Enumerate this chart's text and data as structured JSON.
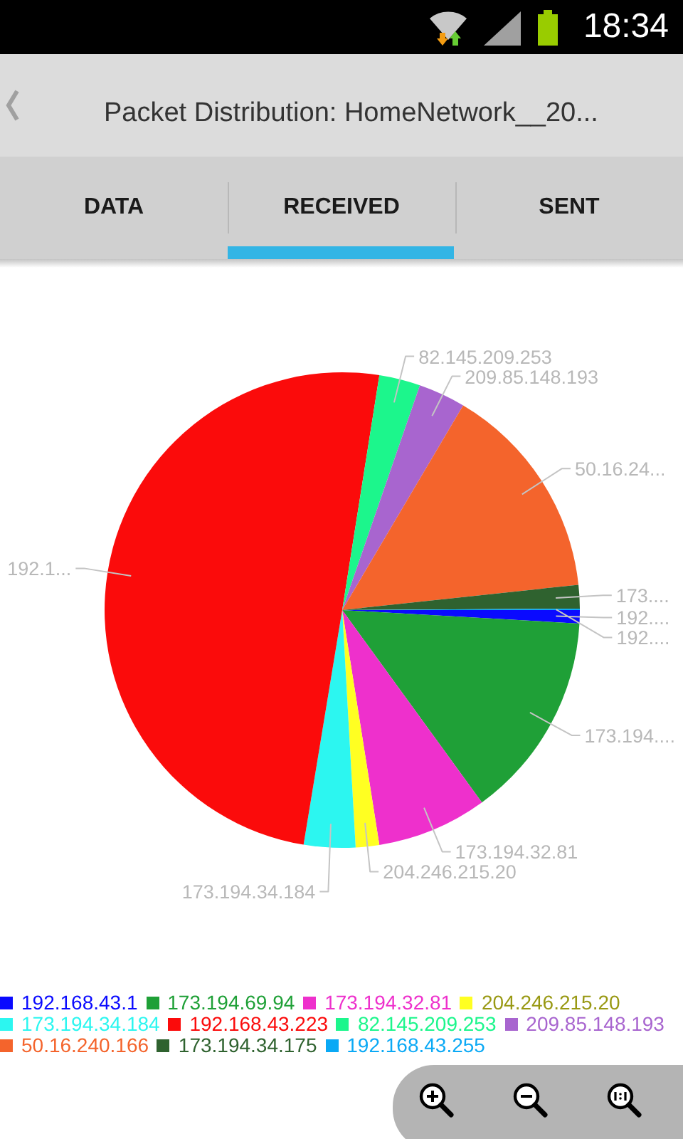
{
  "chart_data": {
    "type": "pie",
    "title": "Packet Distribution: HomeNetwork__20...",
    "categories": [
      "192.168.43.1",
      "173.194.69.94",
      "173.194.32.81",
      "204.246.215.20",
      "173.194.34.184",
      "192.168.43.223",
      "82.145.209.253",
      "209.85.148.193",
      "50.16.240.166",
      "173.194.34.175",
      "192.168.43.255"
    ],
    "values": [
      0.9,
      14.1,
      7.5,
      1.6,
      3.5,
      49.9,
      2.8,
      3.2,
      14.8,
      1.6,
      0.1
    ],
    "colors": [
      "#0a0aff",
      "#1fa037",
      "#ee30cc",
      "#ffff22",
      "#2cf6f0",
      "#fb0b0b",
      "#1cf68c",
      "#a865cf",
      "#f4642c",
      "#2f622f",
      "#0aa9f5"
    ],
    "legend": "bottom",
    "annotations": [
      "18:34",
      "DATA",
      "RECEIVED",
      "SENT",
      "192....",
      "173.194....",
      "173.194.32.81",
      "204.246.215.20",
      "173.194.34.184",
      "192.1...",
      "82.145.209.253",
      "209.85.148.193",
      "50.16.24...",
      "173....",
      "192...."
    ]
  }
}
